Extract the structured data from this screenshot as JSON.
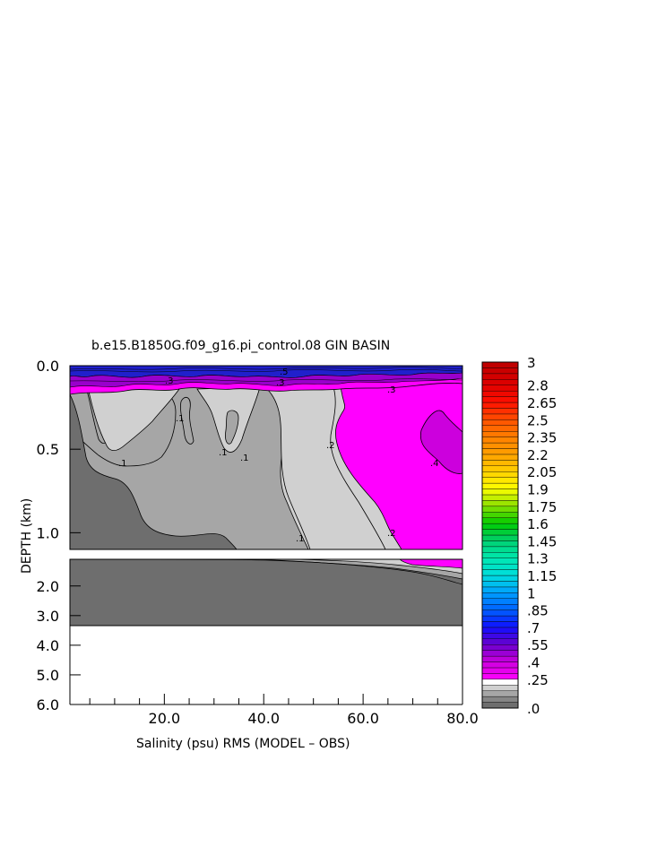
{
  "chart_data": {
    "type": "heatmap",
    "title": "b.e15.B1850G.f09_g16.pi_control.08 GIN BASIN",
    "xlabel": "Salinity (psu) RMS (MODEL – OBS)",
    "ylabel": "DEPTH (km)",
    "x_ticks": [
      "20.0",
      "40.0",
      "60.0",
      "80.0"
    ],
    "x_tick_values": [
      20,
      40,
      60,
      80
    ],
    "xlim": [
      1,
      80
    ],
    "y_ticks_upper": [
      "0.0",
      "0.5",
      "1.0"
    ],
    "y_tick_values_upper": [
      0.0,
      0.5,
      1.0
    ],
    "ylim_upper": [
      0.0,
      1.1
    ],
    "y_ticks_lower": [
      "2.0",
      "3.0",
      "4.0",
      "5.0",
      "6.0"
    ],
    "y_tick_values_lower": [
      2.0,
      3.0,
      4.0,
      5.0,
      6.0
    ],
    "ylim_lower": [
      1.1,
      6.0
    ],
    "ocean_floor_depth_km": 3.35,
    "contour_labels": [
      ".1",
      ".1",
      ".1",
      ".1",
      ".1",
      ".2",
      ".2",
      ".3",
      ".3",
      ".3",
      ".4",
      ".5"
    ],
    "colorbar": {
      "labels": [
        ".0",
        ".25",
        ".4",
        ".55",
        ".7",
        ".85",
        "1",
        "1.15",
        "1.3",
        "1.45",
        "1.6",
        "1.75",
        "1.9",
        "2.05",
        "2.2",
        "2.35",
        "2.5",
        "2.65",
        "2.8",
        "3"
      ],
      "label_values": [
        0,
        0.25,
        0.4,
        0.55,
        0.7,
        0.85,
        1,
        1.15,
        1.3,
        1.45,
        1.6,
        1.75,
        1.9,
        2.05,
        2.2,
        2.35,
        2.5,
        2.65,
        2.8,
        3
      ],
      "levels": [
        0,
        0.05,
        0.1,
        0.15,
        0.2,
        0.25,
        0.3,
        0.35,
        0.4,
        0.45,
        0.5,
        0.55,
        0.6,
        0.65,
        0.7,
        0.75,
        0.8,
        0.85,
        0.9,
        0.95,
        1.0,
        1.05,
        1.1,
        1.15,
        1.2,
        1.25,
        1.3,
        1.35,
        1.4,
        1.45,
        1.5,
        1.55,
        1.6,
        1.65,
        1.7,
        1.75,
        1.8,
        1.85,
        1.9,
        1.95,
        2.0,
        2.05,
        2.1,
        2.15,
        2.2,
        2.25,
        2.3,
        2.35,
        2.4,
        2.45,
        2.5,
        2.55,
        2.6,
        2.65,
        2.7,
        2.75,
        2.8,
        2.85,
        2.9,
        2.95,
        3.0
      ],
      "colors": {
        "lt_0_05": "#6e6e6e",
        "b_0_05_0_10": "#868686",
        "b_0_10_0_15": "#a6a6a6",
        "b_0_15_0_20": "#d0d0d0",
        "b_0_20_0_25": "#ffffff",
        "magenta": "#ff00ff",
        "purple": "#9900cc",
        "blue": "#0000ff",
        "cyan": "#00dddd",
        "green": "#00cc00",
        "yellow": "#ffff00",
        "orange": "#ff9900",
        "red": "#ff0000",
        "dark_red": "#bb0000"
      }
    },
    "regions": [
      {
        "range": "< 0.1",
        "color": "#6e6e6e"
      },
      {
        "range": "0.1 - 0.15",
        "color": "#a6a6a6"
      },
      {
        "range": "0.15 - 0.2",
        "color": "#d0d0d0"
      },
      {
        "range": "0.25 - 0.4",
        "color": "#ff00ff"
      },
      {
        "range": "0.4 - 0.55",
        "color": "#cc00dd"
      },
      {
        "range": "> 0.55 (surface)",
        "color": "#2020cc"
      }
    ]
  }
}
